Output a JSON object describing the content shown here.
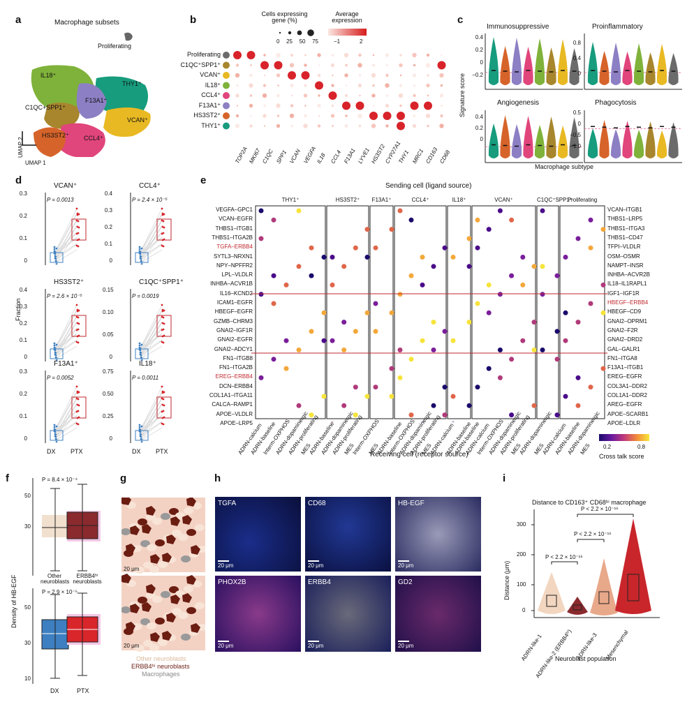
{
  "panels": {
    "a": "a",
    "b": "b",
    "c": "c",
    "d": "d",
    "e": "e",
    "f": "f",
    "g": "g",
    "h": "h",
    "i": "i"
  },
  "a": {
    "title": "Macrophage subsets",
    "proliferating": "Proliferating",
    "clusters": [
      "IL18⁺",
      "THY1⁺",
      "C1QC+SPP1⁺",
      "F13A1⁺",
      "VCAN⁺",
      "HS3ST2⁺",
      "CCL4⁺"
    ],
    "umap1": "UMAP 1",
    "umap2": "UMAP 2"
  },
  "b": {
    "size_legend_title": "Cells expressing gene (%)",
    "size_ticks": [
      "0",
      "25",
      "50",
      "75"
    ],
    "color_legend_title": "Average expression",
    "color_ticks": [
      "−1",
      "2"
    ],
    "rows": [
      "Proliferating",
      "C1QC⁺SPP1⁺",
      "VCAN⁺",
      "IL18⁺",
      "CCL4⁺",
      "F13A1⁺",
      "HS3ST2⁺",
      "THY1⁺"
    ],
    "row_colors": [
      "#6b6b6b",
      "#a8862d",
      "#e8b923",
      "#7fb23a",
      "#e0457b",
      "#8d7fc4",
      "#d6642a",
      "#179c7d"
    ],
    "genes": [
      "TOP2A",
      "MKI67",
      "C1QC",
      "SPP1",
      "VCAN",
      "VEGFA",
      "IL18",
      "CCL4",
      "F13A1",
      "LYVE1",
      "HS3ST2",
      "CYP27A1",
      "THY1",
      "MRC1",
      "CD163",
      "CD68"
    ]
  },
  "c": {
    "titles": [
      "Immunosuppressive",
      "Proinflammatory",
      "Angiogenesis",
      "Phagocytosis"
    ],
    "ylabel": "Signature score",
    "xlabel": "Macrophage subtype",
    "yticks": [
      [
        "0.4",
        "0.2",
        "0",
        "−0.2"
      ],
      [
        "0.8",
        "0.4",
        "0"
      ],
      [
        "0.4",
        "0.2",
        "0"
      ],
      [
        "0.5",
        "0",
        "−0.5",
        "−1.0"
      ]
    ]
  },
  "d": {
    "ylabel": "Fraction",
    "xticks": [
      "DX",
      "PTX"
    ],
    "panels": [
      {
        "title": "VCAN⁺",
        "p": "P = 0.0013",
        "yticks": [
          "0.3",
          "0.2",
          "0.1",
          "0"
        ]
      },
      {
        "title": "CCL4⁺",
        "p": "P = 2.4 × 10⁻⁵",
        "yticks": [
          "0.4",
          "0.3",
          "0.2",
          "0.1",
          "0"
        ]
      },
      {
        "title": "HS3ST2⁺",
        "p": "P = 2.6 × 10⁻⁵",
        "yticks": [
          "0.4",
          "0.3",
          "0.2",
          "0.1",
          "0"
        ]
      },
      {
        "title": "C1QC⁺SPP1⁺",
        "p": "P = 0.0019",
        "yticks": [
          "0.15",
          "0.10",
          "0.05",
          "0"
        ]
      },
      {
        "title": "F13A1⁺",
        "p": "P = 0.0052",
        "yticks": [
          "0.3",
          "0.2",
          "0.1",
          "0"
        ]
      },
      {
        "title": "IL18⁺",
        "p": "P = 0.0011",
        "yticks": [
          "0.75",
          "0.50",
          "0.25",
          "0"
        ]
      }
    ]
  },
  "e": {
    "title": "Sending cell (ligand source)",
    "xlabel": "Receiving cell (receptor source)",
    "legend_title": "Cross talk score",
    "legend_ticks": [
      "0.2",
      "0.8"
    ],
    "groups": [
      "THY1⁺",
      "HS3ST2⁺",
      "F13A1⁺",
      "CCL4⁺",
      "IL18⁺",
      "VCAN⁺",
      "C1QC⁺SPP1⁺",
      "Proliferating"
    ],
    "left_pairs": [
      "VEGFA–GPC1",
      "VCAN–EGFR",
      "THBS1–ITGB1",
      "THBS1–ITGA2B",
      "TGFA–ERBB4",
      "SYTL3–NRXN1",
      "NPY–NPFFR2",
      "LPL–VLDLR",
      "INHBA–ACVR1B",
      "IL16–KCND2",
      "ICAM1–EGFR",
      "HBEGF–EGFR",
      "GZMB–CHRM3",
      "GNAI2–IGF1R",
      "GNAI2–EGFR",
      "GNAI2–ADCY1",
      "FN1–ITGB8",
      "FN1–ITGA2B",
      "EREG–ERBB4",
      "DCN–ERBB4",
      "COL1A1–ITGA11",
      "CALCA–RAMP1",
      "APOE–VLDLR",
      "APOE–LRP5"
    ],
    "right_pairs": [
      "VCAN–ITGB1",
      "THBS1–LRP5",
      "THBS1–ITGA3",
      "THBS1–CD47",
      "TFPI–VLDLR",
      "OSM–OSMR",
      "NAMPT–INSR",
      "INHBA–ACVR2B",
      "IL18–IL1RAPL1",
      "IGF1–IGF1R",
      "HBEGF–ERBB4",
      "HBEGF–CD9",
      "GNAI2–OPRM1",
      "GNAI2–F2R",
      "GNAI2–DRD2",
      "GAL–GALR1",
      "FN1–ITGA8",
      "F13A1–ITGB1",
      "EREG–EGFR",
      "COL3A1–DDR2",
      "COL1A1–DDR2",
      "AREG–EGFR",
      "APOE–SCARB1",
      "APOE–LDLR"
    ],
    "highlight_color": "#c0272d",
    "receivers": [
      [
        "ADRN-calcium",
        "ADRN-baseline",
        "Interm-OXPHOS",
        "ADRN-dopaminergic",
        "ADRN-proliferating",
        "MES"
      ],
      [
        "ADRN-baseline",
        "ADRN-dopaminergic",
        "ADRN-proliferating",
        "MES"
      ],
      [
        "Interm-OXPHOS",
        "MES"
      ],
      [
        "ADRN-baseline",
        "Interm-OXPHOS",
        "ADRN-dopaminergic",
        "ADRN-proliferating",
        "MES"
      ],
      [
        "ADRN-calcium",
        "ADRN-baseline"
      ],
      [
        "ADRN-baseline",
        "ADRN-calcium",
        "Interm-OXPHOS",
        "ADRN-dopaminergic",
        "ADRN-proliferating",
        "MES"
      ],
      [
        "ADRN-dopaminergic",
        "MES"
      ],
      [
        "ADRN-calcium",
        "ADRN-baseline",
        "ADRN-dopaminergic",
        "MES"
      ]
    ]
  },
  "f": {
    "ylabel": "Density of HB-EGF",
    "top_p": "P = 8.4 × 10⁻⁴",
    "bottom_p": "P = 2.9 × 10⁻⁵",
    "top_xticks": [
      "Other neuroblasts",
      "ERBB4ʰⁱ neuroblasts"
    ],
    "bottom_xticks": [
      "DX",
      "PTX"
    ],
    "yticks": [
      "50",
      "30",
      "10"
    ]
  },
  "g": {
    "scale": "20 μm",
    "legend": [
      "Other neuroblasts",
      "ERBB4ʰⁱ neuroblasts",
      "Macrophages"
    ],
    "legend_colors": [
      "#d9b99b",
      "#6b1d12",
      "#888888"
    ]
  },
  "h": {
    "labels": [
      "TGFA",
      "CD68",
      "HB-EGF",
      "PHOX2B",
      "ERBB4",
      "GD2"
    ],
    "scale": "20 μm"
  },
  "i": {
    "title": "Distance to CD163⁺ CD68ʰⁱ macrophage",
    "ylabel": "Distance (μm)",
    "xlabel": "Neuroblast population",
    "yticks": [
      "300",
      "200",
      "100",
      "0"
    ],
    "xticks": [
      "ADRN-like-1",
      "ADRN-like-2 (ERBB4ʰⁱ)",
      "ADRN-like-3",
      "Mesenchymal"
    ],
    "pvals": [
      "P < 2.2 × 10⁻¹⁶",
      "P < 2.2 × 10⁻¹⁶",
      "P < 2.2 × 10⁻¹⁶"
    ]
  }
}
